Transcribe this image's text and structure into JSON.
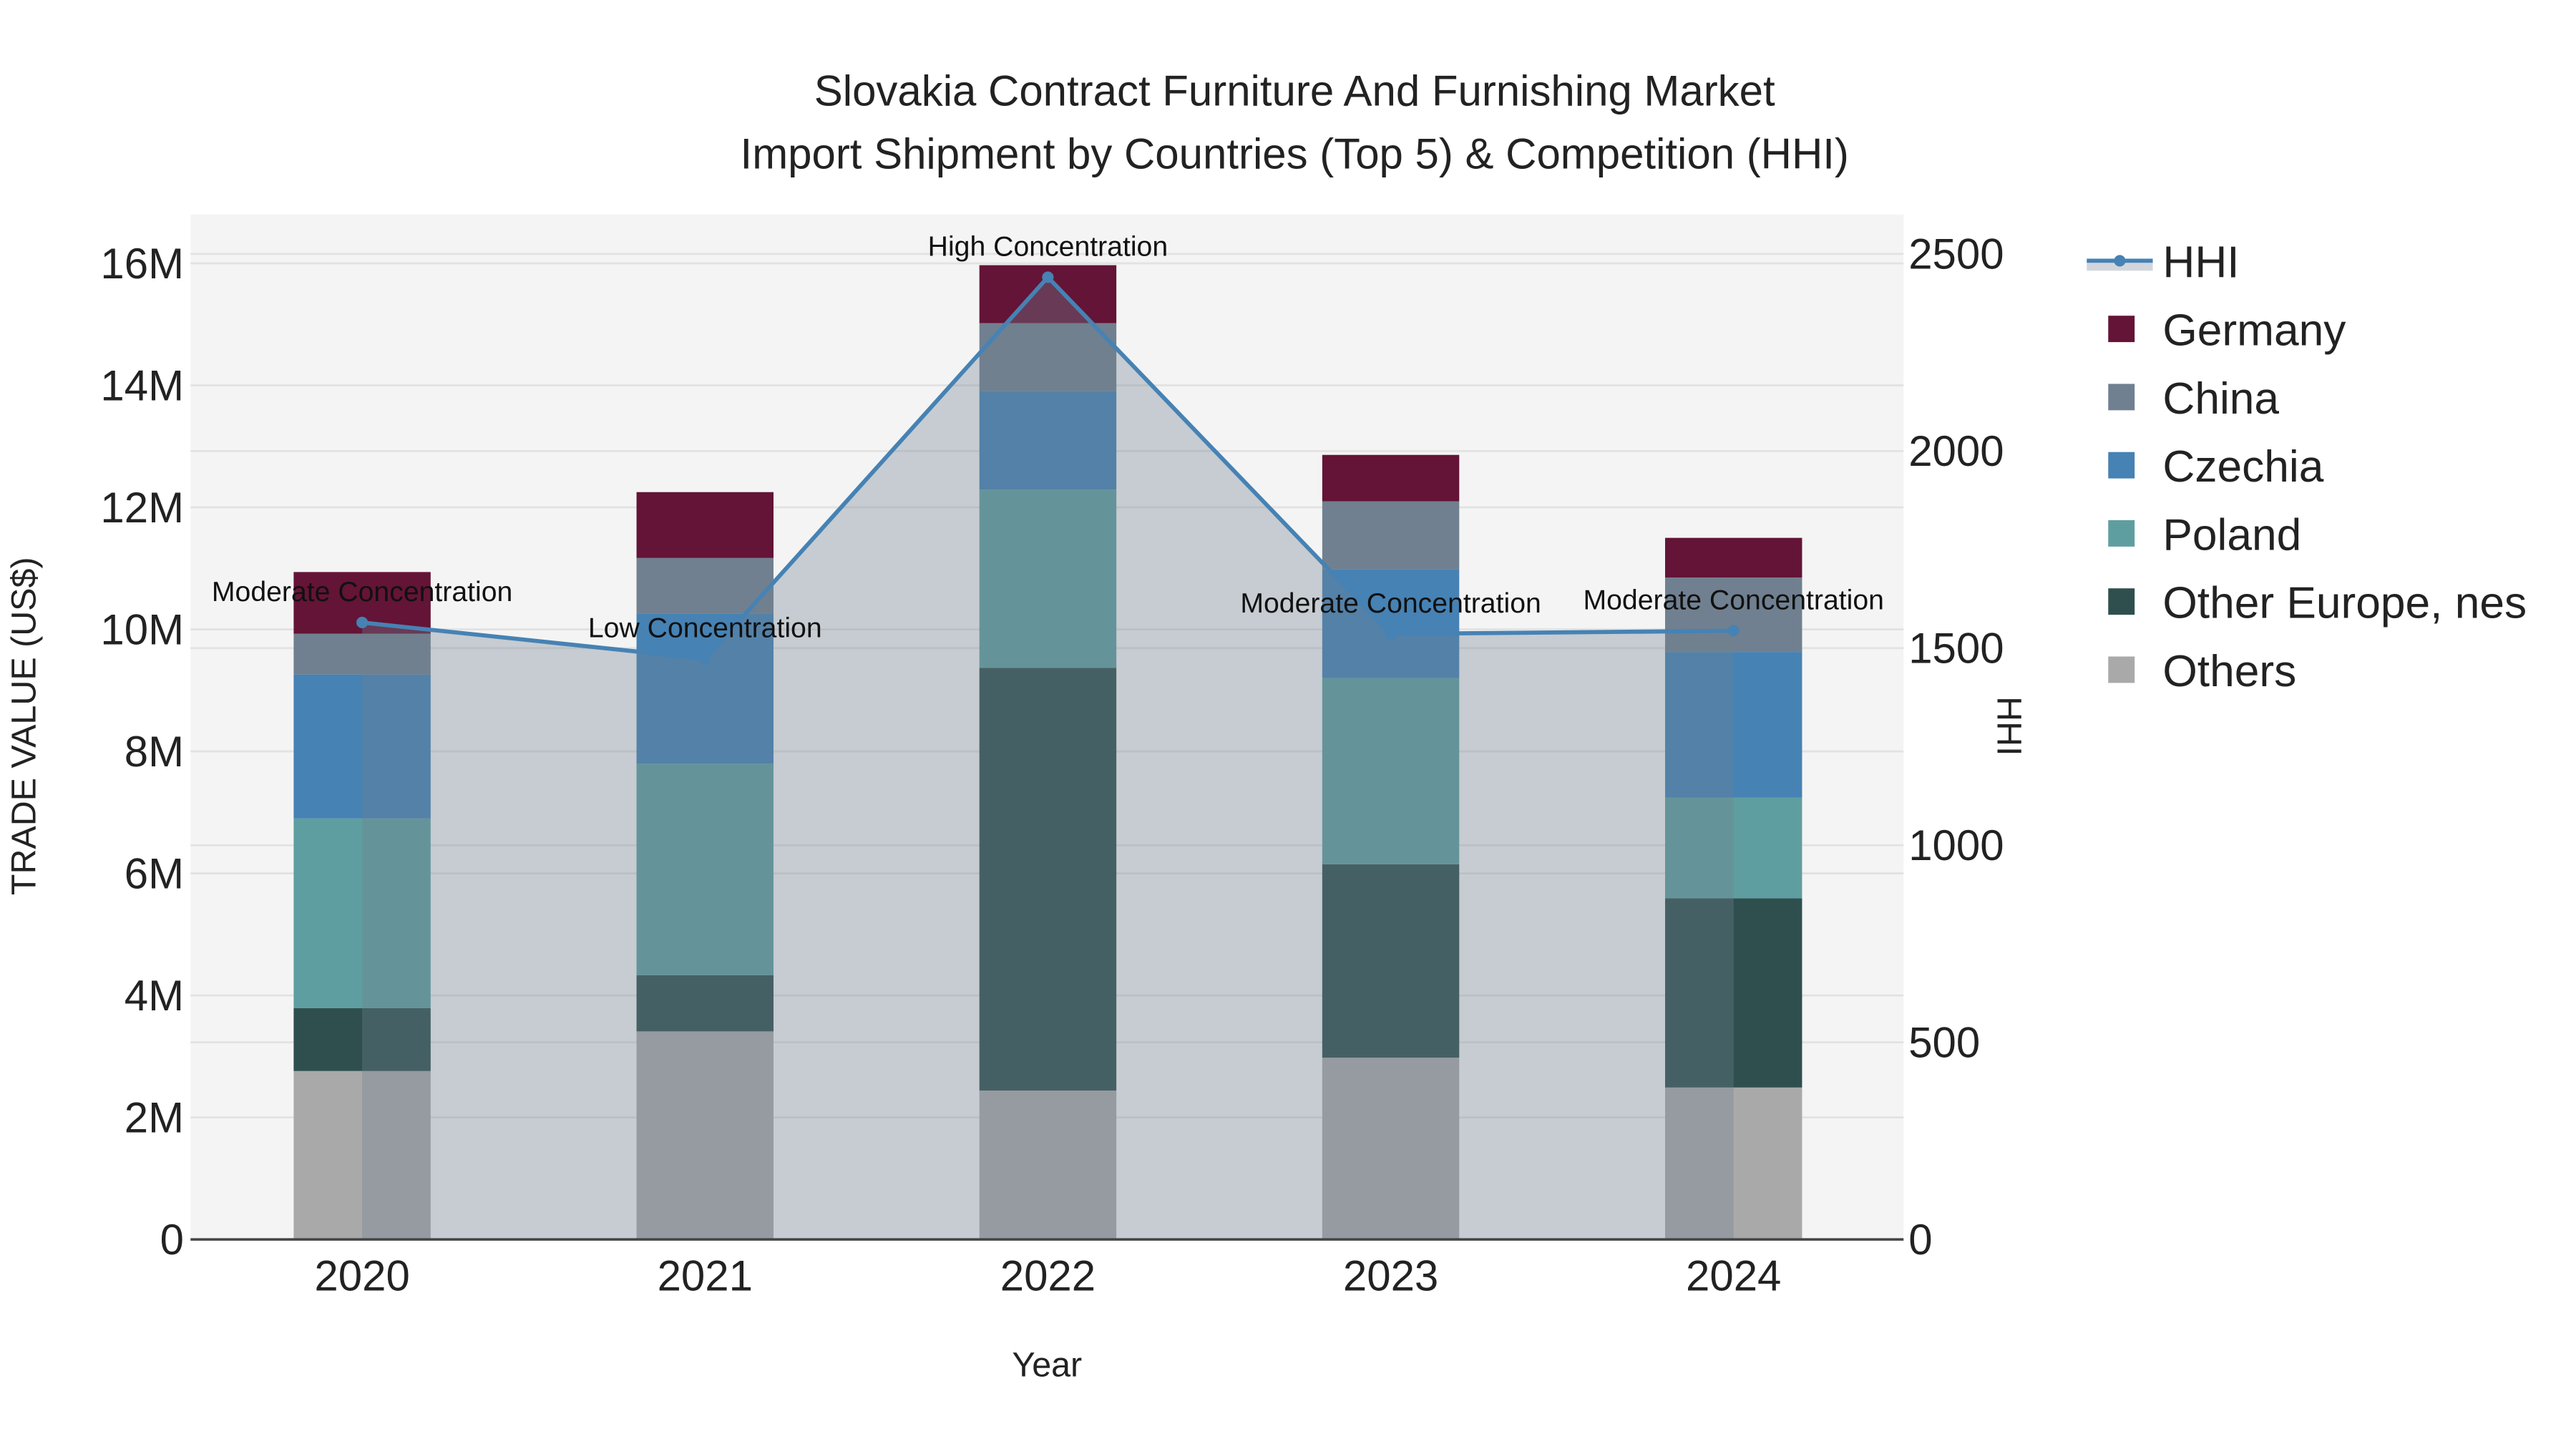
{
  "chart_data": {
    "type": "bar",
    "barmode": "stack",
    "title": "Slovakia Contract Furniture And Furnishing Market",
    "subtitle": "Import Shipment by Countries (Top 5) & Competition (HHI)",
    "xlabel": "Year",
    "ylabel": "TRADE VALUE (US$)",
    "y2label": "HHI",
    "categories": [
      "2020",
      "2021",
      "2022",
      "2023",
      "2024"
    ],
    "ylim": [
      0,
      16.8
    ],
    "y_unit": "M",
    "yticks": [
      0,
      2,
      4,
      6,
      8,
      10,
      12,
      14,
      16
    ],
    "ytick_labels": [
      "0",
      "2M",
      "4M",
      "6M",
      "8M",
      "10M",
      "12M",
      "14M",
      "16M"
    ],
    "y2lim": [
      0,
      2600
    ],
    "y2ticks": [
      0,
      500,
      1000,
      1500,
      2000,
      2500
    ],
    "y2tick_labels": [
      "0",
      "500",
      "1000",
      "1500",
      "2000",
      "2500"
    ],
    "grid": true,
    "legend_position": "right",
    "series": [
      {
        "name": "Others",
        "color": "#A9A9A9",
        "values": [
          2.76,
          3.41,
          2.44,
          2.98,
          2.49
        ]
      },
      {
        "name": "Other Europe, nes",
        "color": "#2F4F4F",
        "values": [
          1.03,
          0.92,
          6.93,
          3.17,
          3.1
        ]
      },
      {
        "name": "Poland",
        "color": "#5F9EA0",
        "values": [
          3.11,
          3.47,
          2.92,
          3.05,
          1.65
        ]
      },
      {
        "name": "Czechia",
        "color": "#4682B4",
        "values": [
          2.36,
          2.46,
          1.62,
          1.79,
          2.39
        ]
      },
      {
        "name": "China",
        "color": "#708090",
        "values": [
          0.67,
          0.91,
          1.11,
          1.11,
          1.22
        ]
      },
      {
        "name": "Germany",
        "color": "#641436",
        "values": [
          1.01,
          1.08,
          0.95,
          0.76,
          0.65
        ]
      }
    ],
    "hhi": {
      "name": "HHI",
      "color": "#4682B4",
      "fill": "rgba(112,128,144,0.35)",
      "values": [
        1565,
        1473,
        2441,
        1536,
        1544
      ],
      "annotations": [
        "Moderate Concentration",
        "Low Concentration",
        "High Concentration",
        "Moderate Concentration",
        "Moderate Concentration"
      ]
    },
    "legend_order": [
      "HHI",
      "Germany",
      "China",
      "Czechia",
      "Poland",
      "Other Europe, nes",
      "Others"
    ]
  }
}
